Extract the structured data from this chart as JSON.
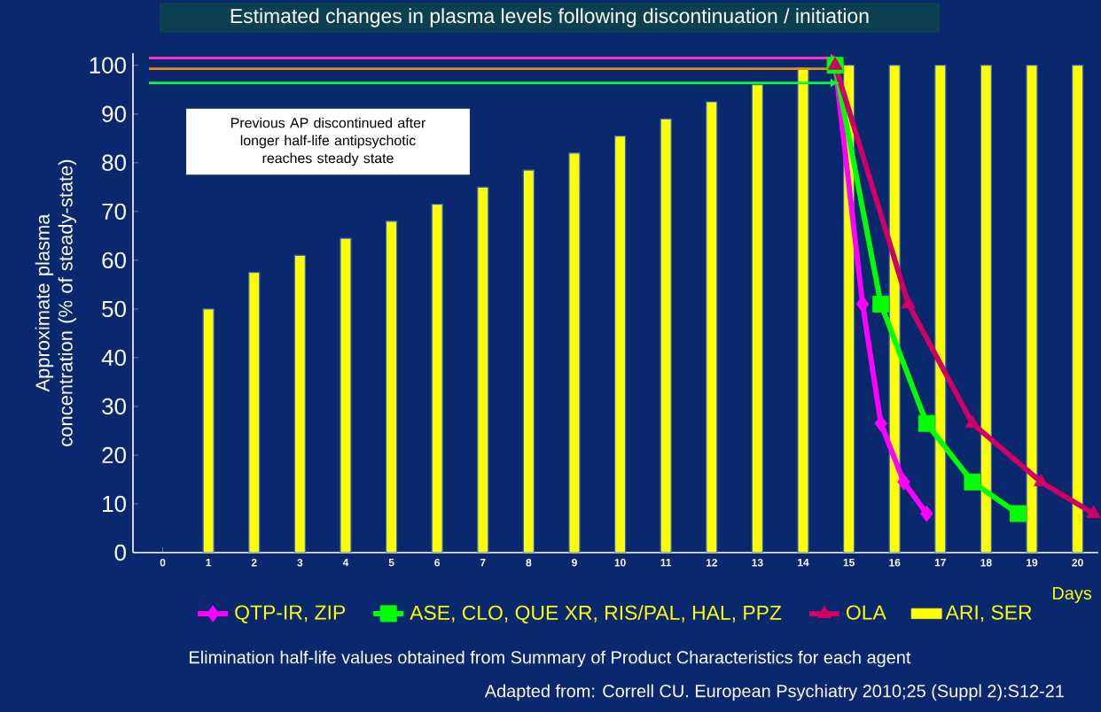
{
  "chart_data": {
    "type": "bar",
    "title": "Estimated changes in plasma levels following discontinuation / initiation",
    "xlabel": "Days",
    "ylabel": "Approximate plasma concentration (% of steady-state)",
    "xlim": [
      -0.65,
      20.45
    ],
    "xticks": [
      0,
      1,
      2,
      3,
      4,
      5,
      6,
      7,
      8,
      9,
      10,
      11,
      12,
      13,
      14,
      15,
      16,
      17,
      18,
      19,
      20
    ],
    "ylim": [
      0,
      102.5
    ],
    "yticks": [
      0,
      10,
      20,
      30,
      40,
      50,
      60,
      70,
      80,
      90,
      100
    ],
    "grid": false,
    "legend": "bottom",
    "annotations": [
      "Previous AP discontinued after longer half-life antipsychotic reaches steady state",
      "Elimination half-life values obtained from Summary of Product Characteristics for each agent",
      "Adapted from: Correll CU. European Psychiatry 2010;25 (Suppl 2):S12-21"
    ],
    "series": [
      {
        "name": "QTP-IR, ZIP",
        "type": "line",
        "color": "#ff00ff",
        "marker": "diamond",
        "x": [
          14.7,
          15.3,
          15.7,
          16.2,
          16.7
        ],
        "values": [
          100,
          51,
          26.5,
          14.5,
          8
        ]
      },
      {
        "name": "ASE, CLO, QUE XR, RIS/PAL, HAL, PPZ",
        "type": "line",
        "color": "#00ff00",
        "marker": "square",
        "x": [
          14.7,
          15.7,
          16.7,
          17.7,
          18.7
        ],
        "values": [
          100,
          51,
          26.5,
          14.5,
          8
        ]
      },
      {
        "name": "OLA",
        "type": "line",
        "color": "#cc0066",
        "marker": "triangle",
        "x": [
          14.7,
          16.3,
          17.7,
          19.2,
          20.35
        ],
        "values": [
          100,
          51,
          26.5,
          14.5,
          8
        ]
      },
      {
        "name": "ARI, SER",
        "color": "#ffff00",
        "x": [
          1,
          2,
          3,
          4,
          5,
          6,
          7,
          8,
          9,
          10,
          11,
          12,
          13,
          14,
          15,
          16,
          17,
          18,
          19,
          20
        ],
        "values": [
          50,
          57.5,
          61,
          64.5,
          68,
          71.5,
          75,
          78.5,
          82,
          85.5,
          89,
          92.5,
          96,
          99.5,
          100,
          100,
          100,
          100,
          100,
          100
        ]
      },
      {
        "type": "line",
        "color": "#ff33cc",
        "marker": "none",
        "x": [
          -0.3,
          14.6
        ],
        "values": [
          101.5,
          101.5
        ]
      },
      {
        "type": "line",
        "color": "#e8901a",
        "marker": "none",
        "x": [
          -0.3,
          14.6
        ],
        "values": [
          99.3,
          99.3
        ]
      },
      {
        "type": "line",
        "color": "#00ff33",
        "marker": "none",
        "x": [
          -0.3,
          14.6
        ],
        "values": [
          96.4,
          96.4
        ]
      }
    ]
  }
}
